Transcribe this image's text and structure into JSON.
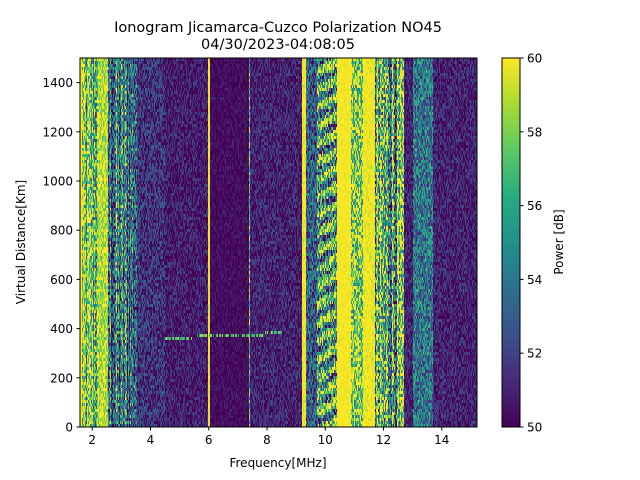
{
  "chart_data": {
    "type": "heatmap",
    "title": "Ionogram Jicamarca-Cuzco Polarization NO45",
    "subtitle": "04/30/2023-04:08:05",
    "xlabel": "Frequency[MHz]",
    "ylabel": "Virtual Distance[Km]",
    "xlim": [
      1.58,
      15.21
    ],
    "ylim": [
      0,
      1500
    ],
    "xticks": [
      2,
      4,
      6,
      8,
      10,
      12,
      14
    ],
    "yticks": [
      0,
      200,
      400,
      600,
      800,
      1000,
      1200,
      1400
    ],
    "colorbar": {
      "label": "Power [dB]",
      "range": [
        50,
        60
      ],
      "ticks": [
        50,
        52,
        54,
        56,
        58,
        60
      ],
      "colormap": "viridis"
    },
    "bands": [
      {
        "f0": 1.58,
        "f1": 1.66,
        "power": 60,
        "noise": 0.5
      },
      {
        "f0": 1.66,
        "f1": 2.2,
        "power": 57,
        "noise": 4,
        "striped": true
      },
      {
        "f0": 2.2,
        "f1": 2.55,
        "power": 59,
        "noise": 2
      },
      {
        "f0": 2.55,
        "f1": 3.55,
        "power": 54,
        "noise": 4,
        "striped": true
      },
      {
        "f0": 3.55,
        "f1": 4.5,
        "power": 51.5,
        "noise": 2
      },
      {
        "f0": 4.5,
        "f1": 5.98,
        "power": 50.8,
        "noise": 1.5
      },
      {
        "f0": 5.98,
        "f1": 6.05,
        "power": 60,
        "noise": 1
      },
      {
        "f0": 6.05,
        "f1": 7.37,
        "power": 50.3,
        "noise": 0.8
      },
      {
        "f0": 7.37,
        "f1": 7.43,
        "power": 57,
        "noise": 3
      },
      {
        "f0": 7.43,
        "f1": 9.2,
        "power": 51,
        "noise": 1.5
      },
      {
        "f0": 9.2,
        "f1": 9.34,
        "power": 60,
        "noise": 1
      },
      {
        "f0": 9.34,
        "f1": 9.7,
        "power": 53,
        "noise": 3
      },
      {
        "f0": 9.7,
        "f1": 10.42,
        "power": 56,
        "noise": 5,
        "rippled": true
      },
      {
        "f0": 10.42,
        "f1": 10.9,
        "power": 60,
        "noise": 0.5
      },
      {
        "f0": 10.9,
        "f1": 11.3,
        "power": 58,
        "noise": 4
      },
      {
        "f0": 11.3,
        "f1": 11.7,
        "power": 60,
        "noise": 1
      },
      {
        "f0": 11.7,
        "f1": 12.7,
        "power": 56,
        "noise": 5,
        "striped": true
      },
      {
        "f0": 12.7,
        "f1": 13.0,
        "power": 51,
        "noise": 1.5
      },
      {
        "f0": 13.0,
        "f1": 13.7,
        "power": 54,
        "noise": 3
      },
      {
        "f0": 13.7,
        "f1": 15.21,
        "power": 51,
        "noise": 1.5
      }
    ],
    "trace": [
      [
        4.5,
        370
      ],
      [
        5.5,
        372
      ],
      [
        6.5,
        375
      ],
      [
        7.5,
        380
      ],
      [
        8.0,
        385
      ],
      [
        8.5,
        390
      ]
    ],
    "grid": false
  }
}
